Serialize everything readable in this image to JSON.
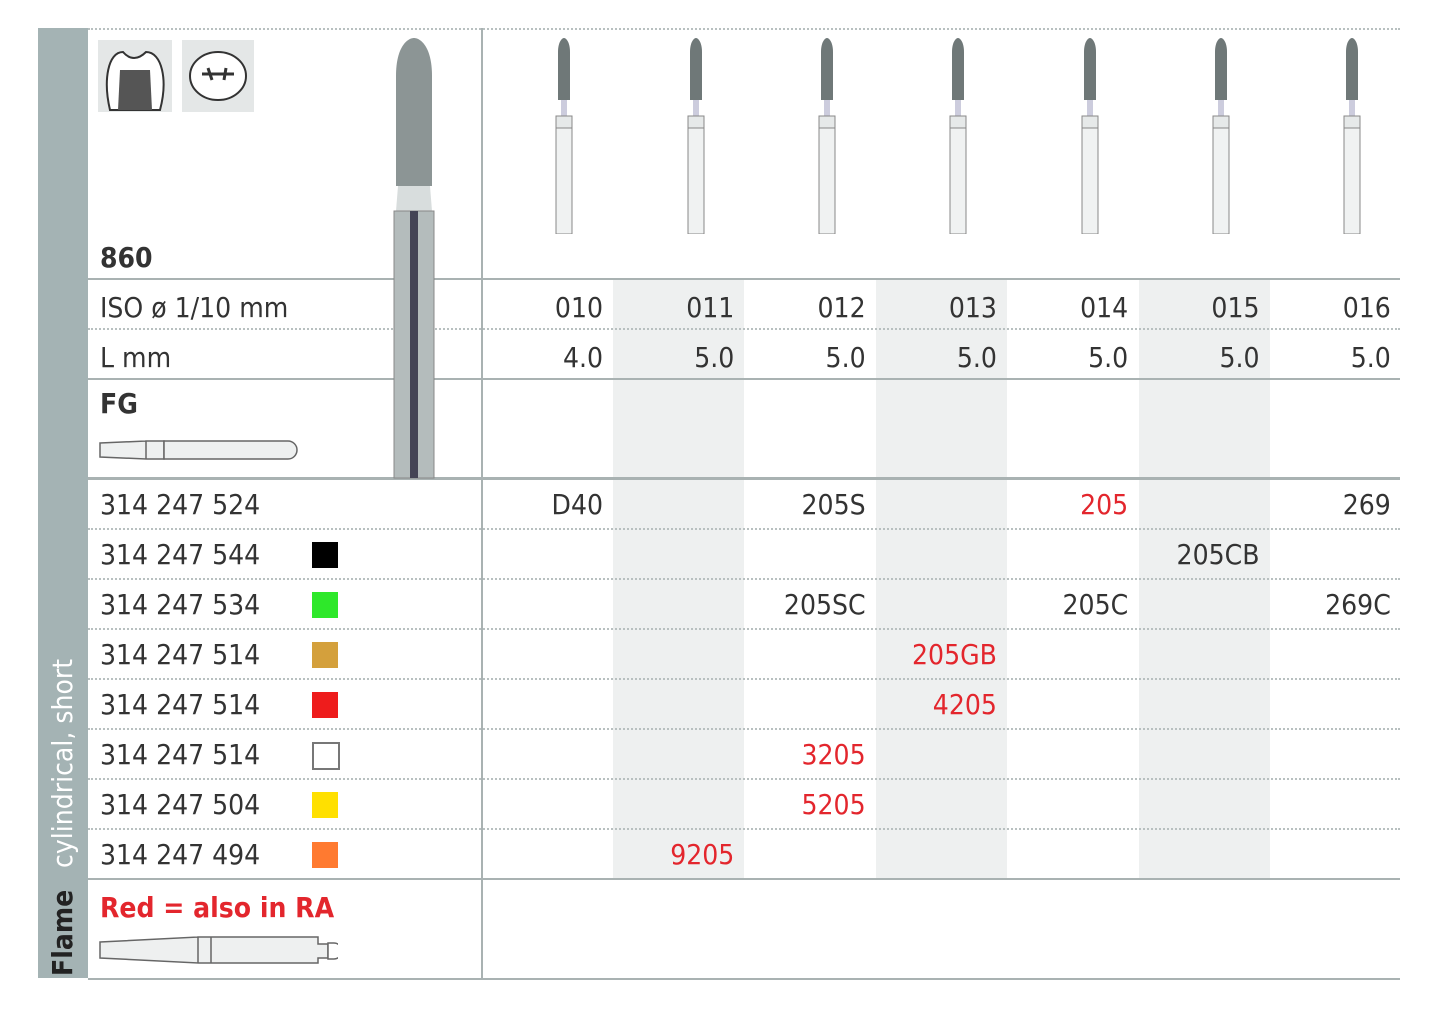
{
  "sidebar": {
    "category": "cylindrical, short",
    "shape": "Flame"
  },
  "header": {
    "figure": "860",
    "iso_label": "ISO ø 1/10 mm",
    "length_label": "L mm",
    "shank_label": "FG",
    "footer_note": "Red = also in RA"
  },
  "sizes": [
    "010",
    "011",
    "012",
    "013",
    "014",
    "015",
    "016"
  ],
  "lengths": [
    "4.0",
    "5.0",
    "5.0",
    "5.0",
    "5.0",
    "5.0",
    "5.0"
  ],
  "colors": {
    "red_text": "#e3262d",
    "band": "#a4b3b4"
  },
  "rows": [
    {
      "code": "314 247 524",
      "swatch": null,
      "cells": [
        {
          "col": 0,
          "v": "D40"
        },
        {
          "col": 2,
          "v": "205S"
        },
        {
          "col": 4,
          "v": "205",
          "red": true
        },
        {
          "col": 6,
          "v": "269"
        }
      ]
    },
    {
      "code": "314 247 544",
      "swatch": "#000000",
      "cells": [
        {
          "col": 5,
          "v": "205CB"
        }
      ]
    },
    {
      "code": "314 247 534",
      "swatch": "#2ee82a",
      "cells": [
        {
          "col": 2,
          "v": "205SC"
        },
        {
          "col": 4,
          "v": "205C"
        },
        {
          "col": 6,
          "v": "269C"
        }
      ]
    },
    {
      "code": "314 247 514",
      "swatch": "#d4a03c",
      "cells": [
        {
          "col": 3,
          "v": "205GB",
          "red": true
        }
      ]
    },
    {
      "code": "314 247 514",
      "swatch": "#ee1c1c",
      "cells": [
        {
          "col": 3,
          "v": "4205",
          "red": true
        }
      ]
    },
    {
      "code": "314 247 514",
      "swatch": "#ffffff",
      "cells": [
        {
          "col": 2,
          "v": "3205",
          "red": true
        }
      ]
    },
    {
      "code": "314 247 504",
      "swatch": "#ffe000",
      "cells": [
        {
          "col": 2,
          "v": "5205",
          "red": true
        }
      ]
    },
    {
      "code": "314 247 494",
      "swatch": "#ff7a30",
      "cells": [
        {
          "col": 1,
          "v": "9205",
          "red": true
        }
      ]
    }
  ]
}
